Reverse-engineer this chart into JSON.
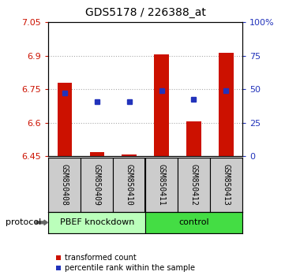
{
  "title": "GDS5178 / 226388_at",
  "samples": [
    "GSM850408",
    "GSM850409",
    "GSM850410",
    "GSM850411",
    "GSM850412",
    "GSM850413"
  ],
  "bar_tops": [
    6.78,
    6.468,
    6.457,
    6.905,
    6.605,
    6.912
  ],
  "bar_bottoms": [
    6.45,
    6.45,
    6.45,
    6.45,
    6.45,
    6.45
  ],
  "blue_dots_y": [
    6.735,
    6.695,
    6.695,
    6.745,
    6.705,
    6.745
  ],
  "ylim_left": [
    6.45,
    7.05
  ],
  "ylim_right": [
    0,
    100
  ],
  "yticks_left": [
    6.45,
    6.6,
    6.75,
    6.9,
    7.05
  ],
  "yticks_right": [
    0,
    25,
    50,
    75,
    100
  ],
  "ytick_labels_left": [
    "6.45",
    "6.6",
    "6.75",
    "6.9",
    "7.05"
  ],
  "ytick_labels_right": [
    "0",
    "25",
    "50",
    "75",
    "100%"
  ],
  "bar_color": "#cc1100",
  "dot_color": "#2233bb",
  "bar_width": 0.45,
  "grid_color": "#aaaaaa",
  "plot_bg": "#ffffff",
  "outer_bg": "#ffffff",
  "sample_bg": "#cccccc",
  "group1_label": "PBEF knockdown",
  "group2_label": "control",
  "group1_color": "#bbffbb",
  "group2_color": "#44dd44",
  "protocol_label": "protocol",
  "legend_red_label": "transformed count",
  "legend_blue_label": "percentile rank within the sample",
  "left_tick_color": "#cc1100",
  "right_tick_color": "#2233bb",
  "title_fontsize": 10,
  "tick_fontsize": 8,
  "sample_fontsize": 7,
  "group_fontsize": 8,
  "legend_fontsize": 7,
  "protocol_fontsize": 8
}
